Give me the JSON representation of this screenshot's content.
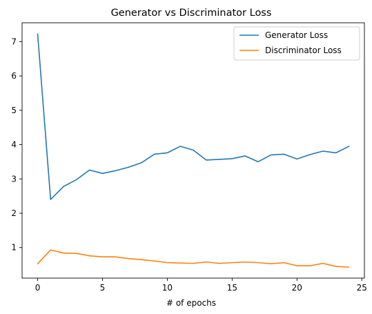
{
  "chart_data": {
    "type": "line",
    "title": "Generator vs Discriminator Loss",
    "xlabel": "# of epochs",
    "ylabel": "",
    "xlim": [
      -1.2,
      25.2
    ],
    "ylim": [
      0.11,
      7.55
    ],
    "xticks": [
      0,
      5,
      10,
      15,
      20,
      25
    ],
    "yticks": [
      1,
      2,
      3,
      4,
      5,
      6,
      7
    ],
    "grid": false,
    "legend_position": "top-right",
    "x": [
      0,
      1,
      2,
      3,
      4,
      5,
      6,
      7,
      8,
      9,
      10,
      11,
      12,
      13,
      14,
      15,
      16,
      17,
      18,
      19,
      20,
      21,
      22,
      23,
      24
    ],
    "series": [
      {
        "name": "Generator Loss",
        "color": "#1f77b4",
        "values": [
          7.22,
          2.4,
          2.78,
          2.98,
          3.26,
          3.16,
          3.24,
          3.34,
          3.47,
          3.72,
          3.76,
          3.95,
          3.84,
          3.55,
          3.57,
          3.59,
          3.67,
          3.5,
          3.7,
          3.72,
          3.58,
          3.71,
          3.81,
          3.76,
          3.95
        ]
      },
      {
        "name": "Discriminator Loss",
        "color": "#ff7f0e",
        "values": [
          0.53,
          0.93,
          0.84,
          0.83,
          0.76,
          0.73,
          0.73,
          0.68,
          0.65,
          0.61,
          0.56,
          0.55,
          0.54,
          0.58,
          0.54,
          0.56,
          0.58,
          0.56,
          0.53,
          0.56,
          0.47,
          0.47,
          0.54,
          0.45,
          0.43
        ]
      }
    ]
  }
}
